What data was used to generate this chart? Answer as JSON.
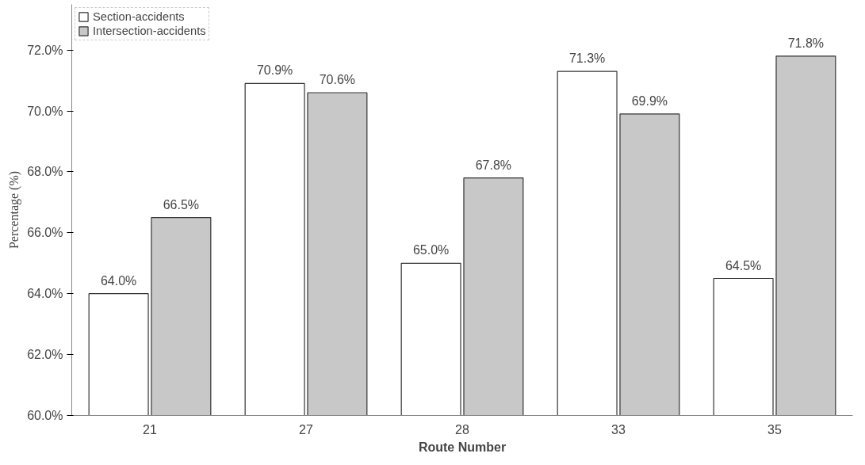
{
  "chart_data": {
    "type": "bar",
    "xlabel": "Route Number",
    "ylabel": "Percentage (%)",
    "categories": [
      "21",
      "27",
      "28",
      "33",
      "35"
    ],
    "series": [
      {
        "name": "Section-accidents",
        "color": "#ffffff",
        "values": [
          64.0,
          70.9,
          65.0,
          71.3,
          64.5
        ],
        "value_labels": [
          "64.0%",
          "70.9%",
          "65.0%",
          "71.3%",
          "64.5%"
        ]
      },
      {
        "name": "Intersection-accidents",
        "color": "#c8c8c8",
        "values": [
          66.5,
          70.6,
          67.8,
          69.9,
          71.8
        ],
        "value_labels": [
          "66.5%",
          "70.6%",
          "67.8%",
          "69.9%",
          "71.8%"
        ]
      }
    ],
    "ylim": [
      60,
      73.5
    ],
    "yticks": [
      {
        "value": 60,
        "label": "60.0%"
      },
      {
        "value": 62,
        "label": "62.0%"
      },
      {
        "value": 64,
        "label": "64.0%"
      },
      {
        "value": 66,
        "label": "66.0%"
      },
      {
        "value": 68,
        "label": "68.0%"
      },
      {
        "value": 70,
        "label": "70.0%"
      },
      {
        "value": 72,
        "label": "72.0%"
      }
    ],
    "legend": "top left",
    "grid": false
  }
}
